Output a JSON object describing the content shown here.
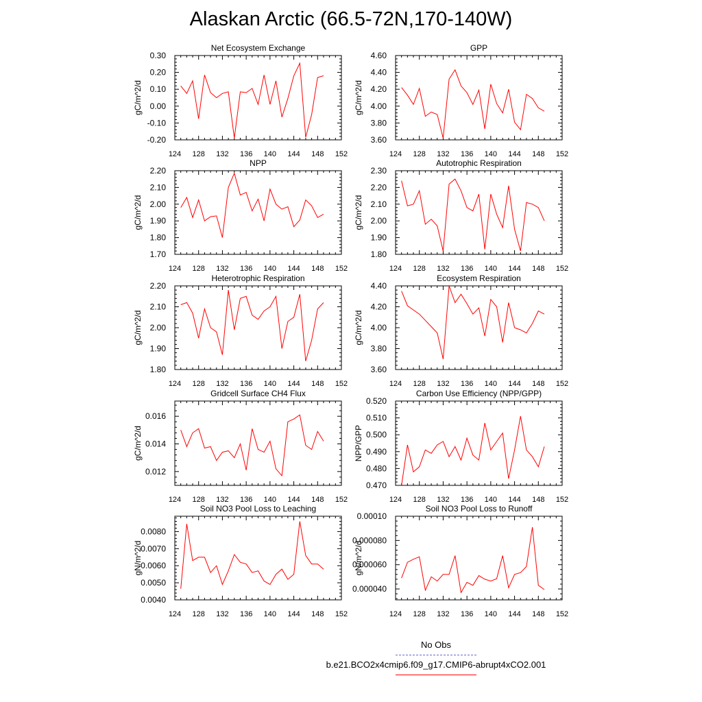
{
  "title": "Alaskan Arctic (66.5-72N,170-140W)",
  "colors": {
    "model": "#ff0000",
    "obs": "#6666cc",
    "axis": "#000000"
  },
  "legend": {
    "obs_label": "No Obs",
    "model_label": "b.e21.BCO2x4cmip6.f09_g17.CMIP6-abrupt4xCO2.001"
  },
  "chart_data": [
    {
      "type": "line",
      "title": "Net Ecosystem Exchange",
      "ylabel": "gC/m^2/d",
      "xlim": [
        124,
        152
      ],
      "ylim": [
        -0.2,
        0.3
      ],
      "xticks": [
        124,
        128,
        132,
        136,
        140,
        144,
        148,
        152
      ],
      "yticks": [
        -0.2,
        -0.1,
        0.0,
        0.1,
        0.2,
        0.3
      ],
      "yticklabels": [
        "-0.20",
        "-0.10",
        "0.00",
        "0.10",
        "0.20",
        "0.30"
      ],
      "x": [
        125,
        126,
        127,
        128,
        129,
        130,
        131,
        132,
        133,
        134,
        135,
        136,
        137,
        138,
        139,
        140,
        141,
        142,
        143,
        144,
        145,
        146,
        147,
        148,
        149
      ],
      "y": [
        0.12,
        0.075,
        0.15,
        -0.075,
        0.185,
        0.08,
        0.05,
        0.075,
        0.085,
        -0.19,
        0.085,
        0.08,
        0.105,
        0.01,
        0.185,
        0.01,
        0.15,
        -0.065,
        0.045,
        0.18,
        0.255,
        -0.185,
        -0.05,
        0.17,
        0.18
      ]
    },
    {
      "type": "line",
      "title": "GPP",
      "ylabel": "gC/m^2/d",
      "xlim": [
        124,
        152
      ],
      "ylim": [
        3.6,
        4.6
      ],
      "xticks": [
        124,
        128,
        132,
        136,
        140,
        144,
        148,
        152
      ],
      "yticks": [
        3.6,
        3.8,
        4.0,
        4.2,
        4.4,
        4.6
      ],
      "yticklabels": [
        "3.60",
        "3.80",
        "4.00",
        "4.20",
        "4.40",
        "4.60"
      ],
      "x": [
        125,
        126,
        127,
        128,
        129,
        130,
        131,
        132,
        133,
        134,
        135,
        136,
        137,
        138,
        139,
        140,
        141,
        142,
        143,
        144,
        145,
        146,
        147,
        148,
        149
      ],
      "y": [
        4.22,
        4.13,
        4.02,
        4.21,
        3.88,
        3.93,
        3.9,
        3.62,
        4.32,
        4.43,
        4.24,
        4.16,
        4.02,
        4.19,
        3.73,
        4.26,
        4.03,
        3.92,
        4.2,
        3.81,
        3.72,
        4.14,
        4.09,
        3.98,
        3.94
      ]
    },
    {
      "type": "line",
      "title": "NPP",
      "ylabel": "gC/m^2/d",
      "xlim": [
        124,
        152
      ],
      "ylim": [
        1.7,
        2.2
      ],
      "xticks": [
        124,
        128,
        132,
        136,
        140,
        144,
        148,
        152
      ],
      "yticks": [
        1.7,
        1.8,
        1.9,
        2.0,
        2.1,
        2.2
      ],
      "yticklabels": [
        "1.70",
        "1.80",
        "1.90",
        "2.00",
        "2.10",
        "2.20"
      ],
      "x": [
        125,
        126,
        127,
        128,
        129,
        130,
        131,
        132,
        133,
        134,
        135,
        136,
        137,
        138,
        139,
        140,
        141,
        142,
        143,
        144,
        145,
        146,
        147,
        148,
        149
      ],
      "y": [
        1.98,
        2.04,
        1.92,
        2.025,
        1.9,
        1.925,
        1.93,
        1.8,
        2.1,
        2.185,
        2.055,
        2.07,
        1.96,
        2.03,
        1.9,
        2.09,
        2.0,
        1.97,
        1.985,
        1.865,
        1.905,
        2.025,
        1.99,
        1.92,
        1.94
      ]
    },
    {
      "type": "line",
      "title": "Autotrophic Respiration",
      "ylabel": "gC/m^2/d",
      "xlim": [
        124,
        152
      ],
      "ylim": [
        1.8,
        2.3
      ],
      "xticks": [
        124,
        128,
        132,
        136,
        140,
        144,
        148,
        152
      ],
      "yticks": [
        1.8,
        1.9,
        2.0,
        2.1,
        2.2,
        2.3
      ],
      "yticklabels": [
        "1.80",
        "1.90",
        "2.00",
        "2.10",
        "2.20",
        "2.30"
      ],
      "x": [
        125,
        126,
        127,
        128,
        129,
        130,
        131,
        132,
        133,
        134,
        135,
        136,
        137,
        138,
        139,
        140,
        141,
        142,
        143,
        144,
        145,
        146,
        147,
        148,
        149
      ],
      "y": [
        2.24,
        2.09,
        2.1,
        2.18,
        1.98,
        2.01,
        1.97,
        1.82,
        2.22,
        2.25,
        2.18,
        2.08,
        2.06,
        2.16,
        1.83,
        2.16,
        2.04,
        1.96,
        2.21,
        1.95,
        1.82,
        2.11,
        2.1,
        2.08,
        2.0
      ]
    },
    {
      "type": "line",
      "title": "Heterotrophic Respiration",
      "ylabel": "gC/m^2/d",
      "xlim": [
        124,
        152
      ],
      "ylim": [
        1.8,
        2.2
      ],
      "xticks": [
        124,
        128,
        132,
        136,
        140,
        144,
        148,
        152
      ],
      "yticks": [
        1.8,
        1.9,
        2.0,
        2.1,
        2.2
      ],
      "yticklabels": [
        "1.80",
        "1.90",
        "2.00",
        "2.10",
        "2.20"
      ],
      "x": [
        125,
        126,
        127,
        128,
        129,
        130,
        131,
        132,
        133,
        134,
        135,
        136,
        137,
        138,
        139,
        140,
        141,
        142,
        143,
        144,
        145,
        146,
        147,
        148,
        149
      ],
      "y": [
        2.11,
        2.12,
        2.07,
        1.95,
        2.09,
        2.0,
        1.98,
        1.87,
        2.18,
        1.99,
        2.14,
        2.15,
        2.06,
        2.04,
        2.08,
        2.1,
        2.15,
        1.9,
        2.03,
        2.05,
        2.16,
        1.84,
        1.94,
        2.09,
        2.12
      ]
    },
    {
      "type": "line",
      "title": "Ecosystem Respiration",
      "ylabel": "gC/m^2/d",
      "xlim": [
        124,
        152
      ],
      "ylim": [
        3.6,
        4.4
      ],
      "xticks": [
        124,
        128,
        132,
        136,
        140,
        144,
        148,
        152
      ],
      "yticks": [
        3.6,
        3.8,
        4.0,
        4.2,
        4.4
      ],
      "yticklabels": [
        "3.60",
        "3.80",
        "4.00",
        "4.20",
        "4.40"
      ],
      "x": [
        125,
        126,
        127,
        128,
        129,
        130,
        131,
        132,
        133,
        134,
        135,
        136,
        137,
        138,
        139,
        140,
        141,
        142,
        143,
        144,
        145,
        146,
        147,
        148,
        149
      ],
      "y": [
        4.35,
        4.21,
        4.17,
        4.13,
        4.07,
        4.01,
        3.95,
        3.7,
        4.4,
        4.24,
        4.32,
        4.23,
        4.13,
        4.19,
        3.92,
        4.27,
        4.2,
        3.86,
        4.24,
        4.0,
        3.98,
        3.95,
        4.04,
        4.16,
        4.13
      ]
    },
    {
      "type": "line",
      "title": "Gridcell Surface CH4 Flux",
      "ylabel": "gC/m^2/d",
      "xlim": [
        124,
        152
      ],
      "ylim": [
        0.011,
        0.0171
      ],
      "xticks": [
        124,
        128,
        132,
        136,
        140,
        144,
        148,
        152
      ],
      "yticks": [
        0.012,
        0.014,
        0.016
      ],
      "yticklabels": [
        "0.012",
        "0.014",
        "0.016"
      ],
      "x": [
        125,
        126,
        127,
        128,
        129,
        130,
        131,
        132,
        133,
        134,
        135,
        136,
        137,
        138,
        139,
        140,
        141,
        142,
        143,
        144,
        145,
        146,
        147,
        148,
        149
      ],
      "y": [
        0.015,
        0.0138,
        0.0148,
        0.0151,
        0.0137,
        0.0138,
        0.0128,
        0.0134,
        0.0135,
        0.013,
        0.014,
        0.0121,
        0.0151,
        0.0136,
        0.0134,
        0.0142,
        0.0122,
        0.0117,
        0.0156,
        0.0158,
        0.0161,
        0.0139,
        0.0136,
        0.0149,
        0.0142
      ]
    },
    {
      "type": "line",
      "title": "Carbon Use Efficiency (NPP/GPP)",
      "ylabel": "NPP/GPP",
      "xlim": [
        124,
        152
      ],
      "ylim": [
        0.47,
        0.52
      ],
      "xticks": [
        124,
        128,
        132,
        136,
        140,
        144,
        148,
        152
      ],
      "yticks": [
        0.47,
        0.48,
        0.49,
        0.5,
        0.51,
        0.52
      ],
      "yticklabels": [
        "0.470",
        "0.480",
        "0.490",
        "0.500",
        "0.510",
        "0.520"
      ],
      "x": [
        125,
        126,
        127,
        128,
        129,
        130,
        131,
        132,
        133,
        134,
        135,
        136,
        137,
        138,
        139,
        140,
        141,
        142,
        143,
        144,
        145,
        146,
        147,
        148,
        149
      ],
      "y": [
        0.47,
        0.494,
        0.478,
        0.481,
        0.491,
        0.489,
        0.494,
        0.496,
        0.487,
        0.493,
        0.485,
        0.498,
        0.488,
        0.485,
        0.507,
        0.491,
        0.496,
        0.501,
        0.474,
        0.491,
        0.511,
        0.491,
        0.487,
        0.481,
        0.493
      ]
    },
    {
      "type": "line",
      "title": "Soil NO3 Pool Loss to Leaching",
      "ylabel": "gN/m^2/d",
      "xlim": [
        124,
        152
      ],
      "ylim": [
        0.004,
        0.0089
      ],
      "xticks": [
        124,
        128,
        132,
        136,
        140,
        144,
        148,
        152
      ],
      "yticks": [
        0.004,
        0.005,
        0.006,
        0.007,
        0.008
      ],
      "yticklabels": [
        "0.0040",
        "0.0050",
        "0.0060",
        "0.0070",
        "0.0080"
      ],
      "x": [
        125,
        126,
        127,
        128,
        129,
        130,
        131,
        132,
        133,
        134,
        135,
        136,
        137,
        138,
        139,
        140,
        141,
        142,
        143,
        144,
        145,
        146,
        147,
        148,
        149
      ],
      "y": [
        0.00465,
        0.00845,
        0.0063,
        0.0065,
        0.0065,
        0.0056,
        0.006,
        0.0049,
        0.0057,
        0.00665,
        0.0062,
        0.0061,
        0.0056,
        0.0057,
        0.0051,
        0.0049,
        0.0055,
        0.0058,
        0.0052,
        0.0055,
        0.0086,
        0.0066,
        0.0061,
        0.0061,
        0.0058
      ]
    },
    {
      "type": "line",
      "title": "Soil NO3 Pool Loss to Runoff",
      "ylabel": "gN/m^2/d",
      "xlim": [
        124,
        152
      ],
      "ylim": [
        3.1e-05,
        0.0001
      ],
      "xticks": [
        124,
        128,
        132,
        136,
        140,
        144,
        148,
        152
      ],
      "yticks": [
        4e-05,
        6e-05,
        8e-05,
        0.0001
      ],
      "yticklabels": [
        "0.000040",
        "0.000060",
        "0.000080",
        "0.00010"
      ],
      "x": [
        125,
        126,
        127,
        128,
        129,
        130,
        131,
        132,
        133,
        134,
        135,
        136,
        137,
        138,
        139,
        140,
        141,
        142,
        143,
        144,
        145,
        146,
        147,
        148,
        149
      ],
      "y": [
        4.9e-05,
        6.2e-05,
        6.45e-05,
        6.65e-05,
        3.9e-05,
        5e-05,
        4.65e-05,
        5.2e-05,
        5.2e-05,
        6.75e-05,
        3.7e-05,
        4.55e-05,
        4.3e-05,
        5.1e-05,
        4.8e-05,
        4.65e-05,
        4.85e-05,
        6.75e-05,
        4.1e-05,
        5.2e-05,
        5.35e-05,
        5.85e-05,
        9.1e-05,
        4.3e-05,
        3.95e-05
      ]
    }
  ]
}
